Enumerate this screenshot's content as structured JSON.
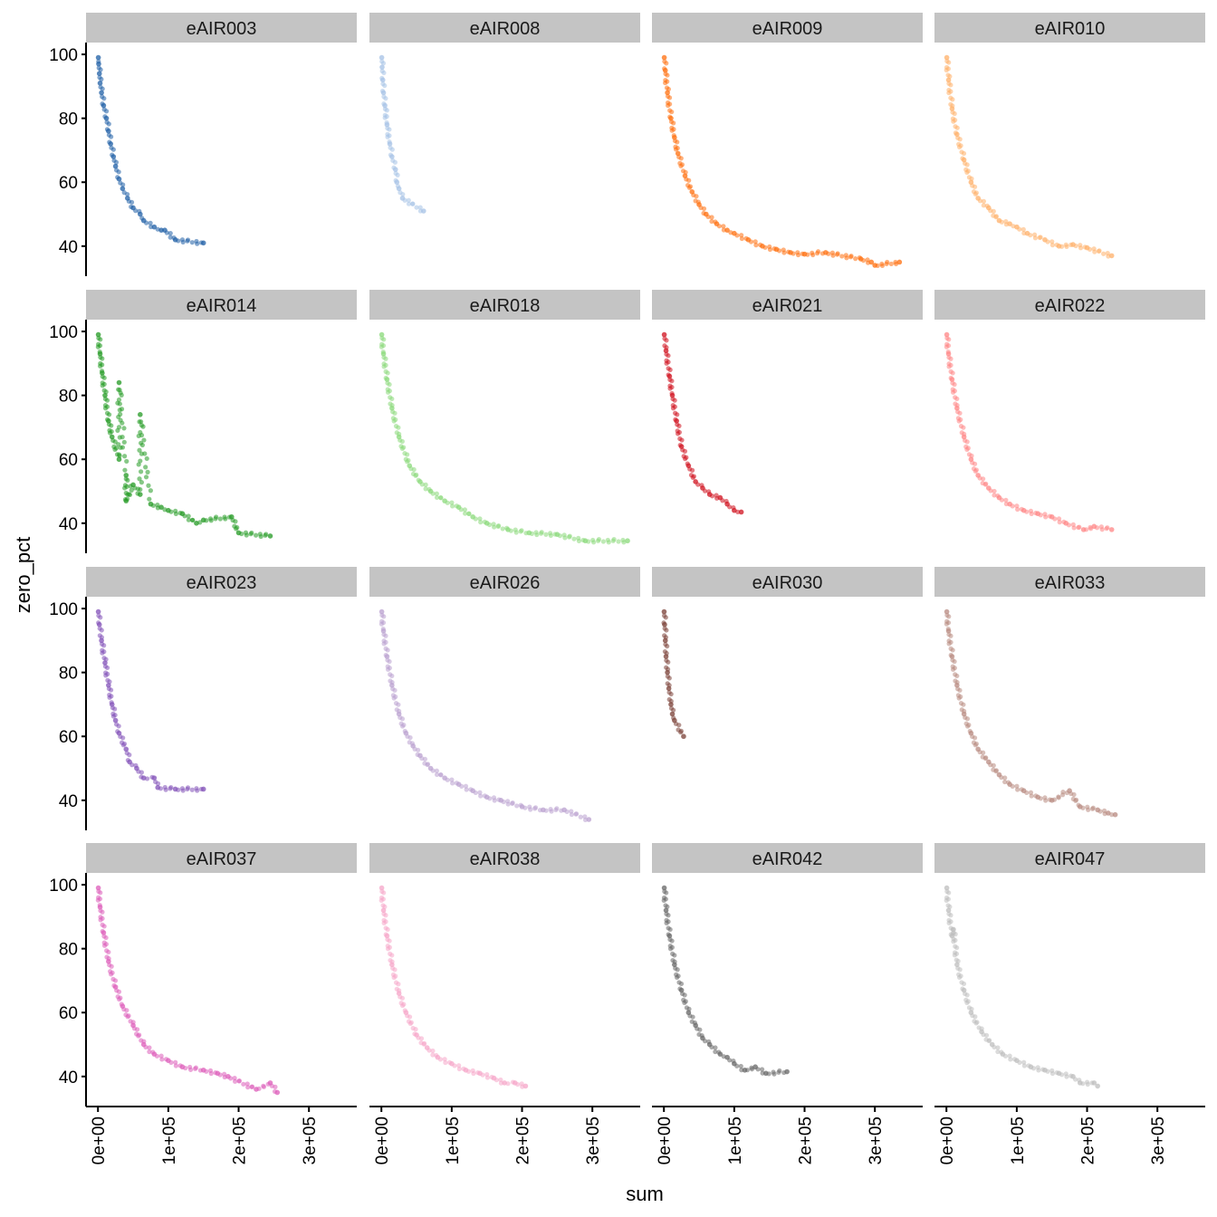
{
  "chart_data": {
    "type": "scatter",
    "facet_layout": "4x4 grid",
    "xlabel": "sum",
    "ylabel": "zero_pct",
    "xlim": [
      -17000,
      368000
    ],
    "ylim": [
      30.6,
      103.7
    ],
    "x_ticks": [
      0,
      100000,
      200000,
      300000
    ],
    "x_tick_labels": [
      "0e+00",
      "1e+05",
      "2e+05",
      "3e+05"
    ],
    "y_ticks": [
      40,
      60,
      80,
      100
    ],
    "y_tick_labels": [
      "40",
      "60",
      "80",
      "100"
    ],
    "grid": false,
    "legend": "none",
    "strip_color": "#c4c4c4",
    "panels": [
      {
        "name": "eAIR003",
        "color": "#1f5fa5",
        "points": [
          [
            500,
            99
          ],
          [
            1000,
            97
          ],
          [
            2000,
            94
          ],
          [
            3000,
            91
          ],
          [
            5000,
            88
          ],
          [
            8000,
            84
          ],
          [
            12000,
            80
          ],
          [
            15000,
            76
          ],
          [
            18000,
            72
          ],
          [
            22000,
            68
          ],
          [
            25000,
            65
          ],
          [
            30000,
            61
          ],
          [
            35000,
            58
          ],
          [
            42000,
            55
          ],
          [
            50000,
            52
          ],
          [
            60000,
            50
          ],
          [
            65000,
            48
          ],
          [
            80000,
            46
          ],
          [
            90000,
            45
          ],
          [
            95000,
            45
          ],
          [
            110000,
            42
          ],
          [
            150000,
            41
          ]
        ]
      },
      {
        "name": "eAIR008",
        "color": "#a6c2e6",
        "points": [
          [
            500,
            99
          ],
          [
            1000,
            96
          ],
          [
            2000,
            92
          ],
          [
            3000,
            88
          ],
          [
            5000,
            84
          ],
          [
            8000,
            78
          ],
          [
            12000,
            72
          ],
          [
            15000,
            68
          ],
          [
            20000,
            64
          ],
          [
            22000,
            60
          ],
          [
            25000,
            58
          ],
          [
            30000,
            55
          ],
          [
            60000,
            51
          ]
        ]
      },
      {
        "name": "eAIR009",
        "color": "#ff6f0e",
        "points": [
          [
            500,
            99
          ],
          [
            2000,
            95
          ],
          [
            5000,
            88
          ],
          [
            10000,
            80
          ],
          [
            15000,
            74
          ],
          [
            20000,
            69
          ],
          [
            30000,
            62
          ],
          [
            40000,
            57
          ],
          [
            50000,
            53
          ],
          [
            60000,
            50
          ],
          [
            75000,
            47
          ],
          [
            90000,
            45
          ],
          [
            100000,
            44
          ],
          [
            120000,
            42
          ],
          [
            140000,
            40
          ],
          [
            160000,
            39
          ],
          [
            180000,
            38
          ],
          [
            200000,
            37.5
          ],
          [
            230000,
            38
          ],
          [
            280000,
            36
          ],
          [
            295000,
            35
          ],
          [
            300000,
            34
          ],
          [
            335000,
            35
          ]
        ]
      },
      {
        "name": "eAIR010",
        "color": "#ffb06a",
        "points": [
          [
            500,
            99
          ],
          [
            3000,
            92
          ],
          [
            8000,
            83
          ],
          [
            15000,
            75
          ],
          [
            25000,
            67
          ],
          [
            35000,
            60
          ],
          [
            45000,
            55
          ],
          [
            60000,
            52
          ],
          [
            75000,
            48
          ],
          [
            90000,
            47
          ],
          [
            100000,
            46
          ],
          [
            115000,
            44
          ],
          [
            140000,
            42
          ],
          [
            160000,
            40
          ],
          [
            180000,
            40.5
          ],
          [
            200000,
            39.5
          ],
          [
            235000,
            37
          ]
        ]
      },
      {
        "name": "eAIR014",
        "color": "#239a23",
        "points": [
          [
            500,
            99
          ],
          [
            3000,
            93
          ],
          [
            6000,
            87
          ],
          [
            10000,
            80
          ],
          [
            15000,
            72
          ],
          [
            20000,
            67
          ],
          [
            30000,
            60
          ],
          [
            30000,
            84
          ],
          [
            40000,
            55
          ],
          [
            40000,
            47
          ],
          [
            50000,
            52
          ],
          [
            60000,
            49
          ],
          [
            60000,
            74
          ],
          [
            75000,
            46
          ],
          [
            90000,
            45
          ],
          [
            100000,
            44
          ],
          [
            120000,
            43
          ],
          [
            140000,
            40
          ],
          [
            150000,
            41
          ],
          [
            190000,
            42
          ],
          [
            200000,
            37
          ],
          [
            245000,
            36
          ]
        ]
      },
      {
        "name": "eAIR018",
        "color": "#8ad97a",
        "points": [
          [
            500,
            99
          ],
          [
            3000,
            93
          ],
          [
            8000,
            85
          ],
          [
            15000,
            76
          ],
          [
            25000,
            67
          ],
          [
            40000,
            58
          ],
          [
            55000,
            53
          ],
          [
            70000,
            50
          ],
          [
            90000,
            47
          ],
          [
            110000,
            45
          ],
          [
            130000,
            42
          ],
          [
            150000,
            40
          ],
          [
            180000,
            38
          ],
          [
            210000,
            37
          ],
          [
            250000,
            36.5
          ],
          [
            290000,
            34.5
          ],
          [
            350000,
            34.5
          ]
        ]
      },
      {
        "name": "eAIR021",
        "color": "#d0101e",
        "points": [
          [
            500,
            99
          ],
          [
            3000,
            94
          ],
          [
            8000,
            86
          ],
          [
            12000,
            80
          ],
          [
            18000,
            72
          ],
          [
            25000,
            64
          ],
          [
            35000,
            58
          ],
          [
            45000,
            53
          ],
          [
            55000,
            51
          ],
          [
            65000,
            49
          ],
          [
            80000,
            48
          ],
          [
            90000,
            46
          ],
          [
            100000,
            44
          ],
          [
            110000,
            43.5
          ]
        ]
      },
      {
        "name": "eAIR022",
        "color": "#ff8585",
        "points": [
          [
            500,
            99
          ],
          [
            3000,
            93
          ],
          [
            8000,
            85
          ],
          [
            15000,
            76
          ],
          [
            25000,
            67
          ],
          [
            35000,
            60
          ],
          [
            45000,
            55
          ],
          [
            60000,
            51
          ],
          [
            75000,
            48
          ],
          [
            90000,
            46
          ],
          [
            110000,
            44
          ],
          [
            130000,
            43
          ],
          [
            150000,
            42
          ],
          [
            170000,
            40
          ],
          [
            195000,
            38
          ],
          [
            210000,
            39
          ],
          [
            235000,
            38
          ]
        ]
      },
      {
        "name": "eAIR023",
        "color": "#8250b8",
        "points": [
          [
            500,
            99
          ],
          [
            2000,
            95
          ],
          [
            5000,
            90
          ],
          [
            10000,
            83
          ],
          [
            15000,
            76
          ],
          [
            20000,
            70
          ],
          [
            25000,
            65
          ],
          [
            30000,
            61
          ],
          [
            40000,
            56
          ],
          [
            45000,
            52
          ],
          [
            55000,
            50
          ],
          [
            65000,
            47
          ],
          [
            80000,
            47
          ],
          [
            85000,
            44
          ],
          [
            110000,
            43.5
          ],
          [
            150000,
            43.5
          ]
        ]
      },
      {
        "name": "eAIR026",
        "color": "#b9a0cf",
        "points": [
          [
            500,
            99
          ],
          [
            3000,
            93
          ],
          [
            8000,
            85
          ],
          [
            15000,
            76
          ],
          [
            25000,
            67
          ],
          [
            35000,
            61
          ],
          [
            45000,
            57
          ],
          [
            55000,
            54
          ],
          [
            70000,
            50
          ],
          [
            90000,
            47
          ],
          [
            110000,
            45
          ],
          [
            130000,
            43
          ],
          [
            150000,
            41
          ],
          [
            170000,
            40
          ],
          [
            200000,
            38
          ],
          [
            230000,
            37
          ],
          [
            260000,
            37
          ],
          [
            295000,
            34
          ]
        ]
      },
      {
        "name": "eAIR030",
        "color": "#7a3f36",
        "points": [
          [
            300,
            99
          ],
          [
            1000,
            95
          ],
          [
            2000,
            90
          ],
          [
            3000,
            85
          ],
          [
            5000,
            80
          ],
          [
            7000,
            75
          ],
          [
            10000,
            70
          ],
          [
            12000,
            67
          ],
          [
            15000,
            65
          ],
          [
            28000,
            60
          ]
        ]
      },
      {
        "name": "eAIR033",
        "color": "#b88a80",
        "points": [
          [
            500,
            99
          ],
          [
            3000,
            93
          ],
          [
            8000,
            85
          ],
          [
            15000,
            76
          ],
          [
            25000,
            67
          ],
          [
            35000,
            61
          ],
          [
            45000,
            56
          ],
          [
            60000,
            52
          ],
          [
            75000,
            48
          ],
          [
            90000,
            45
          ],
          [
            110000,
            43
          ],
          [
            130000,
            41
          ],
          [
            150000,
            40
          ],
          [
            175000,
            43
          ],
          [
            190000,
            38
          ],
          [
            215000,
            37
          ],
          [
            230000,
            36
          ],
          [
            240000,
            35.5
          ]
        ]
      },
      {
        "name": "eAIR037",
        "color": "#dd5cba",
        "points": [
          [
            500,
            99
          ],
          [
            3000,
            93
          ],
          [
            8000,
            85
          ],
          [
            15000,
            76
          ],
          [
            25000,
            68
          ],
          [
            35000,
            62
          ],
          [
            50000,
            56
          ],
          [
            65000,
            50
          ],
          [
            80000,
            47
          ],
          [
            100000,
            45
          ],
          [
            120000,
            43
          ],
          [
            150000,
            42
          ],
          [
            170000,
            41
          ],
          [
            185000,
            40
          ],
          [
            225000,
            36
          ],
          [
            245000,
            38
          ],
          [
            255000,
            35
          ]
        ]
      },
      {
        "name": "eAIR038",
        "color": "#f5a6c8",
        "points": [
          [
            500,
            99
          ],
          [
            3000,
            92
          ],
          [
            8000,
            84
          ],
          [
            15000,
            75
          ],
          [
            25000,
            66
          ],
          [
            35000,
            60
          ],
          [
            50000,
            53
          ],
          [
            65000,
            49
          ],
          [
            80000,
            46
          ],
          [
            100000,
            44
          ],
          [
            120000,
            42
          ],
          [
            140000,
            41
          ],
          [
            160000,
            39.5
          ],
          [
            175000,
            38
          ],
          [
            190000,
            38
          ],
          [
            205000,
            37
          ]
        ]
      },
      {
        "name": "eAIR042",
        "color": "#666666",
        "points": [
          [
            500,
            99
          ],
          [
            3000,
            92
          ],
          [
            8000,
            84
          ],
          [
            15000,
            75
          ],
          [
            25000,
            67
          ],
          [
            35000,
            60
          ],
          [
            45000,
            56
          ],
          [
            55000,
            52
          ],
          [
            65000,
            50
          ],
          [
            80000,
            47
          ],
          [
            90000,
            46
          ],
          [
            100000,
            44
          ],
          [
            115000,
            42
          ],
          [
            130000,
            43
          ],
          [
            145000,
            41
          ],
          [
            175000,
            41.5
          ]
        ]
      },
      {
        "name": "eAIR047",
        "color": "#bdbdbd",
        "points": [
          [
            500,
            99
          ],
          [
            3000,
            92
          ],
          [
            8000,
            84
          ],
          [
            10000,
            86
          ],
          [
            15000,
            75
          ],
          [
            25000,
            67
          ],
          [
            35000,
            60
          ],
          [
            50000,
            54
          ],
          [
            65000,
            50
          ],
          [
            80000,
            47
          ],
          [
            100000,
            45
          ],
          [
            120000,
            43
          ],
          [
            140000,
            42
          ],
          [
            160000,
            41
          ],
          [
            180000,
            40
          ],
          [
            190000,
            38
          ],
          [
            210000,
            38
          ],
          [
            215000,
            37
          ]
        ]
      }
    ]
  }
}
